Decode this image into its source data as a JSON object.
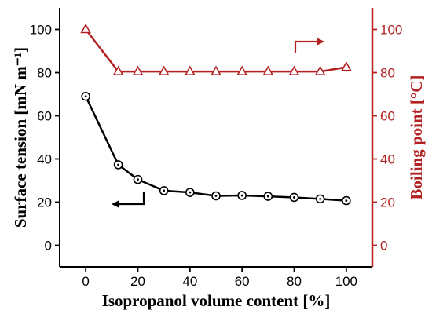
{
  "chart_data": {
    "type": "line",
    "xlabel": "Isopropanol volume content [%]",
    "ylabel_left": "Surface tension [mN m⁻¹]",
    "ylabel_right": "Boiling point [°C]",
    "xlim": [
      -10,
      110
    ],
    "ylim_left": [
      -10,
      110
    ],
    "ylim_right": [
      -10,
      110
    ],
    "x_ticks": [
      0,
      20,
      40,
      60,
      80,
      100
    ],
    "y_ticks_left": [
      0,
      20,
      40,
      60,
      80,
      100
    ],
    "y_ticks_right": [
      0,
      20,
      40,
      60,
      80,
      100
    ],
    "grid": false,
    "series": [
      {
        "axis": "left",
        "color": "#000000",
        "marker": "circle-dot",
        "x": [
          0,
          12.5,
          20,
          30,
          40,
          50,
          60,
          70,
          80,
          90,
          100
        ],
        "y": [
          69,
          37.3,
          30.5,
          25.3,
          24.5,
          22.9,
          23.1,
          22.7,
          22.2,
          21.5,
          20.7
        ]
      },
      {
        "axis": "right",
        "color": "#b22222",
        "marker": "triangle",
        "x": [
          0,
          12.5,
          20,
          30,
          40,
          50,
          60,
          70,
          80,
          90,
          100
        ],
        "y": [
          100,
          80.5,
          80.5,
          80.5,
          80.5,
          80.5,
          80.5,
          80.5,
          80.5,
          80.5,
          82.5
        ]
      }
    ],
    "annotations": [
      {
        "type": "arrow",
        "direction": "left",
        "points_to": "left axis",
        "color": "#000000"
      },
      {
        "type": "arrow",
        "direction": "right",
        "points_to": "right axis",
        "color": "#b22222"
      }
    ]
  }
}
